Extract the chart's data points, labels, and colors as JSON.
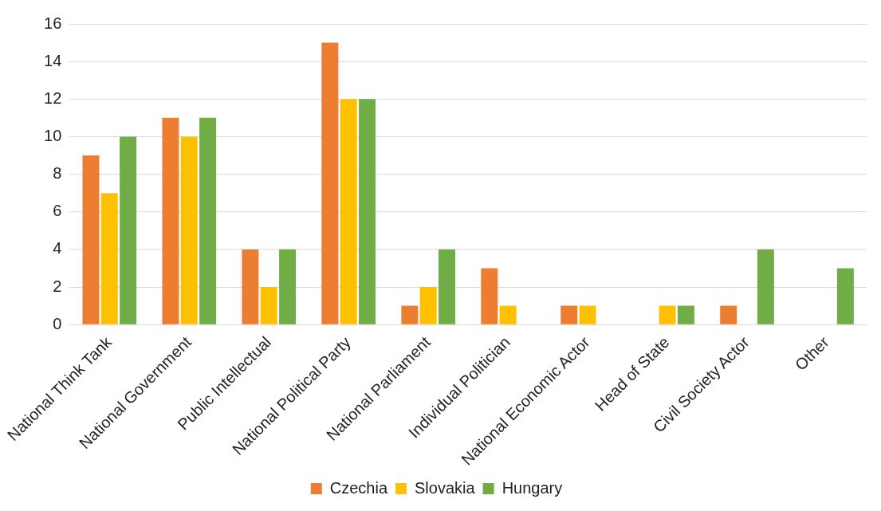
{
  "chart_data": {
    "type": "bar",
    "categories": [
      "National Think Tank",
      "National Government",
      "Public Intellectual",
      "National Political Party",
      "National Parliament",
      "Individual Politician",
      "National Economic Actor",
      "Head of State",
      "Civil Society Actor",
      "Other"
    ],
    "series": [
      {
        "name": "Czechia",
        "color": "#ed7d31",
        "values": [
          9,
          11,
          4,
          15,
          1,
          3,
          1,
          0,
          1,
          0
        ]
      },
      {
        "name": "Slovakia",
        "color": "#ffc000",
        "values": [
          7,
          10,
          2,
          12,
          2,
          1,
          1,
          1,
          0,
          0
        ]
      },
      {
        "name": "Hungary",
        "color": "#70ad47",
        "values": [
          10,
          11,
          4,
          12,
          4,
          0,
          0,
          1,
          4,
          3
        ]
      }
    ],
    "ylim": [
      0,
      16
    ],
    "yticks": [
      0,
      2,
      4,
      6,
      8,
      10,
      12,
      14,
      16
    ],
    "grid": "y",
    "legend": "bottom"
  }
}
